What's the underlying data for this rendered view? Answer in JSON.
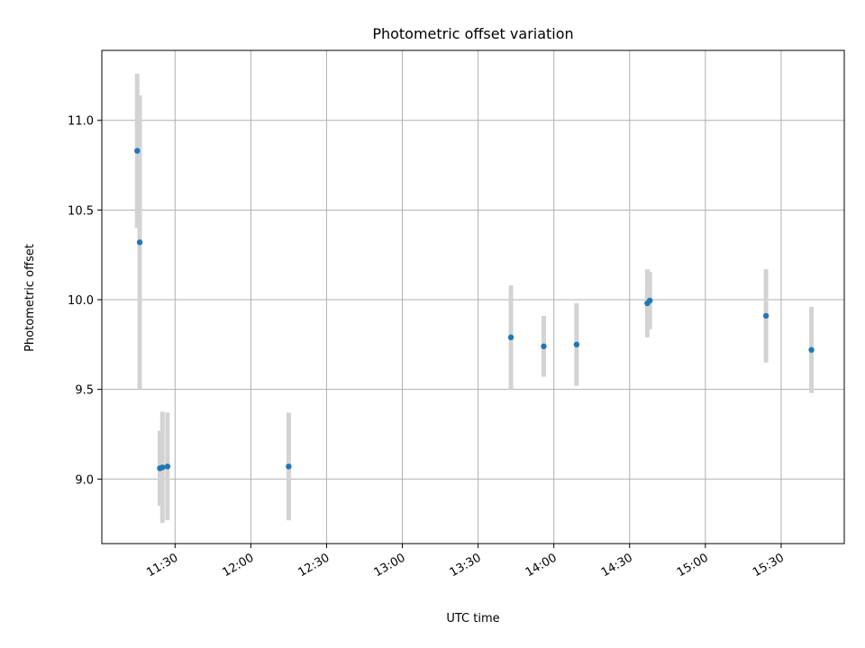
{
  "chart_data": {
    "type": "scatter",
    "title": "Photometric offset variation",
    "xlabel": "UTC time",
    "ylabel": "Photometric offset",
    "x_axis": "time",
    "xlim": [
      "11:01",
      "15:55"
    ],
    "ylim": [
      8.64,
      11.39
    ],
    "x_ticks": [
      "11:30",
      "12:00",
      "12:30",
      "13:00",
      "13:30",
      "14:00",
      "14:30",
      "15:00",
      "15:30"
    ],
    "y_ticks": [
      9.0,
      9.5,
      10.0,
      10.5,
      11.0
    ],
    "y_tick_labels": [
      "9.0",
      "9.5",
      "10.0",
      "10.5",
      "11.0"
    ],
    "grid": true,
    "point_color": "#1f77b4",
    "errorbar_color": "#d3d3d3",
    "points": [
      {
        "time": "11:15",
        "y": 10.83,
        "err": 0.43
      },
      {
        "time": "11:16",
        "y": 10.32,
        "err": 0.82
      },
      {
        "time": "11:24",
        "y": 9.06,
        "err": 0.21
      },
      {
        "time": "11:25",
        "y": 9.065,
        "err": 0.31
      },
      {
        "time": "11:27",
        "y": 9.07,
        "err": 0.3
      },
      {
        "time": "12:15",
        "y": 9.07,
        "err": 0.3
      },
      {
        "time": "13:43",
        "y": 9.79,
        "err": 0.29
      },
      {
        "time": "13:56",
        "y": 9.74,
        "err": 0.17
      },
      {
        "time": "14:09",
        "y": 9.75,
        "err": 0.23
      },
      {
        "time": "14:37",
        "y": 9.98,
        "err": 0.19
      },
      {
        "time": "14:38",
        "y": 9.995,
        "err": 0.16
      },
      {
        "time": "15:24",
        "y": 9.91,
        "err": 0.26
      },
      {
        "time": "15:42",
        "y": 9.72,
        "err": 0.24
      }
    ]
  }
}
